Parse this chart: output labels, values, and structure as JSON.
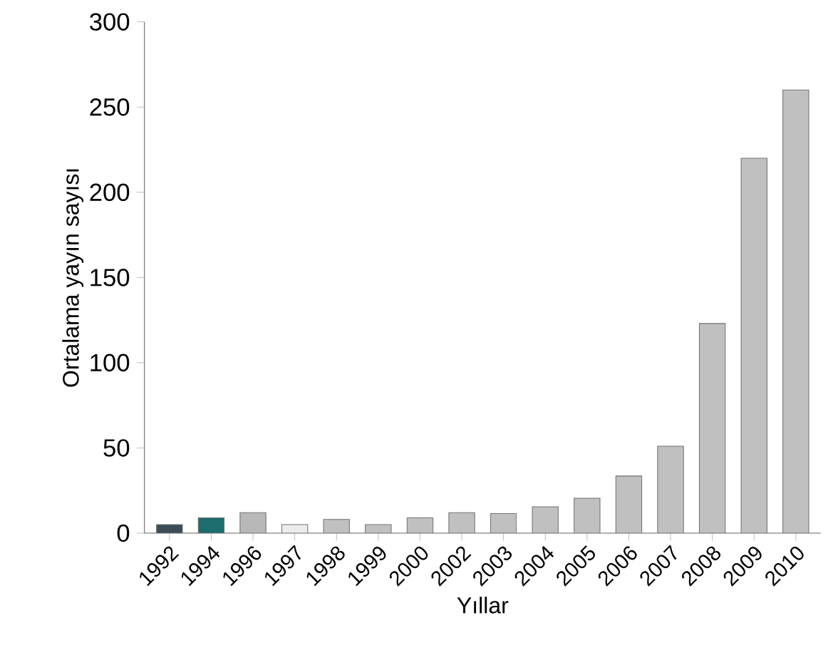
{
  "chart_data": {
    "type": "bar",
    "xlabel": "Yıllar",
    "ylabel": "Ortalama yayın sayısı",
    "categories": [
      "1992",
      "1994",
      "1996",
      "1997",
      "1998",
      "1999",
      "2000",
      "2002",
      "2003",
      "2004",
      "2005",
      "2006",
      "2007",
      "2008",
      "2009",
      "2010"
    ],
    "values": [
      5,
      9,
      12,
      5,
      8,
      5,
      9,
      12,
      11.5,
      15.5,
      20.5,
      33.5,
      51,
      123,
      220,
      260
    ],
    "colors": [
      "#3b4c57",
      "#1d6c6e",
      "#b8b8b8",
      "#ececec",
      "#c0c0c0",
      "#c0c0c0",
      "#c0c0c0",
      "#c0c0c0",
      "#c0c0c0",
      "#c0c0c0",
      "#c0c0c0",
      "#c0c0c0",
      "#c0c0c0",
      "#c0c0c0",
      "#c0c0c0",
      "#c0c0c0"
    ],
    "ylim": [
      0,
      300
    ],
    "yticks": [
      0,
      50,
      100,
      150,
      200,
      250,
      300
    ],
    "grid": false
  }
}
